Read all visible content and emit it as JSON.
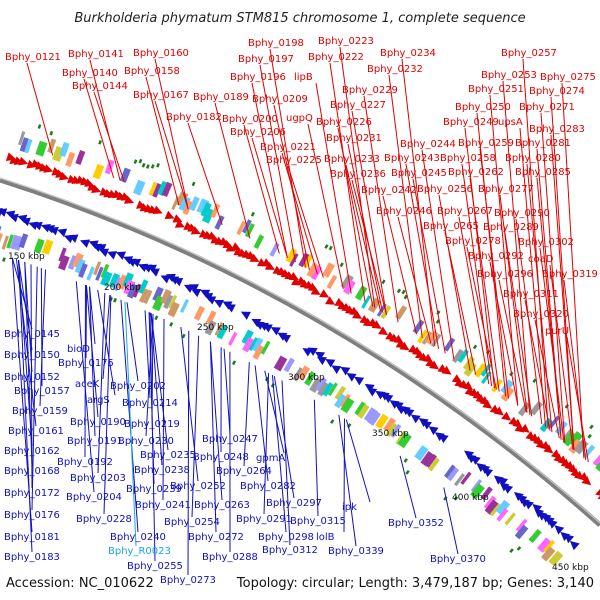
{
  "title": "Burkholderia phymatum STM815 chromosome 1, complete sequence",
  "footer": {
    "accession": "Accession: NC_010622",
    "summary": "Topology: circular; Length: 3,479,187 bp; Genes: 3,140"
  },
  "scale_labels": [
    "150 kbp",
    "200 kbp",
    "250 kbp",
    "300 kbp",
    "350 kbp",
    "400 kbp",
    "450 kbp"
  ],
  "colors": {
    "forward": "#e00000",
    "reverse": "#1010c0",
    "rna": "#18a8e8",
    "backbone": "#888888"
  },
  "forward_labels": [
    "Bphy_0121",
    "Bphy_0141",
    "Bphy_0140",
    "Bphy_0144",
    "Bphy_0160",
    "Bphy_0158",
    "Bphy_0167",
    "Bphy_0189",
    "Bphy_0182",
    "Bphy_0198",
    "Bphy_0197",
    "Bphy_0196",
    "lipB",
    "Bphy_0209",
    "Bphy_0200",
    "Bphy_0206",
    "ugpQ",
    "Bphy_0221",
    "Bphy_0225",
    "Bphy_0223",
    "Bphy_0222",
    "Bphy_0229",
    "Bphy_0227",
    "Bphy_0226",
    "Bphy_0231",
    "Bphy_0233",
    "Bphy_0236",
    "Bphy_0234",
    "Bphy_0232",
    "Bphy_0244",
    "Bphy_0243",
    "Bphy_0245",
    "Bphy_0242",
    "Bphy_0246",
    "Bphy_0257",
    "Bphy_0253",
    "Bphy_0275",
    "Bphy_0251",
    "Bphy_0274",
    "Bphy_0250",
    "Bphy_0271",
    "Bphy_0249",
    "upsA",
    "Bphy_0283",
    "Bphy_0259",
    "Bphy_0281",
    "Bphy_0258",
    "Bphy_0280",
    "Bphy_0262",
    "Bphy_0285",
    "Bphy_0256",
    "Bphy_0277",
    "Bphy_0267",
    "Bphy_0290",
    "Bphy_0265",
    "Bphy_0289",
    "Bphy_0278",
    "Bphy_0302",
    "Bphy_0292",
    "coaD",
    "Bphy_0296",
    "Bphy_0319",
    "Bphy_0311",
    "Bphy_0320",
    "purU"
  ],
  "reverse_labels": [
    "Bphy_0145",
    "Bphy_0150",
    "Bphy_0152",
    "Bphy_0157",
    "Bphy_0159",
    "Bphy_0161",
    "Bphy_0162",
    "Bphy_0168",
    "Bphy_0172",
    "Bphy_0176",
    "Bphy_0181",
    "Bphy_0183",
    "bioD",
    "Bphy_0175",
    "aceK",
    "argS",
    "Bphy_0190",
    "Bphy_0191",
    "Bphy_0192",
    "Bphy_0203",
    "Bphy_0204",
    "Bphy_0202",
    "Bphy_0214",
    "Bphy_0219",
    "Bphy_0230",
    "Bphy_0235",
    "Bphy_0238",
    "Bphy_0239",
    "Bphy_0241",
    "Bphy_0228",
    "Bphy_0240",
    "Bphy_R0023",
    "Bphy_0255",
    "Bphy_0273",
    "Bphy_0254",
    "Bphy_0252",
    "Bphy_0263",
    "Bphy_0247",
    "Bphy_0248",
    "Bphy_0264",
    "gpmA",
    "Bphy_0282",
    "Bphy_0272",
    "Bphy_0288",
    "Bphy_0291",
    "Bphy_0297",
    "Bphy_0298",
    "Bphy_0312",
    "Bphy_0315",
    "lolB",
    "ipk",
    "Bphy_0339",
    "Bphy_0352",
    "Bphy_0370"
  ]
}
